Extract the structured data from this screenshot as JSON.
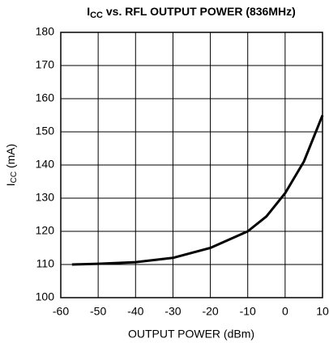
{
  "chart_data": {
    "type": "line",
    "title": {
      "main": "I",
      "sub": "CC",
      "rest": " vs. RFL OUTPUT POWER (836MHz)"
    },
    "y_label": {
      "main": "I",
      "sub": "CC",
      "rest": " (mA)"
    },
    "x_label": "OUTPUT POWER (dBm)",
    "x": [
      -57,
      -50,
      -40,
      -30,
      -20,
      -10,
      -5,
      0,
      5,
      10
    ],
    "series": [
      {
        "color": "#000000",
        "values": [
          110,
          110.2,
          110.7,
          112,
          115,
          120,
          124.5,
          131.5,
          141,
          155
        ]
      }
    ],
    "xlim": [
      -60,
      10
    ],
    "xticks": [
      -60,
      -50,
      -40,
      -30,
      -20,
      -10,
      0,
      10
    ],
    "ylim": [
      100,
      180
    ],
    "yticks": [
      100,
      110,
      120,
      130,
      140,
      150,
      160,
      170,
      180
    ],
    "grid": true
  }
}
